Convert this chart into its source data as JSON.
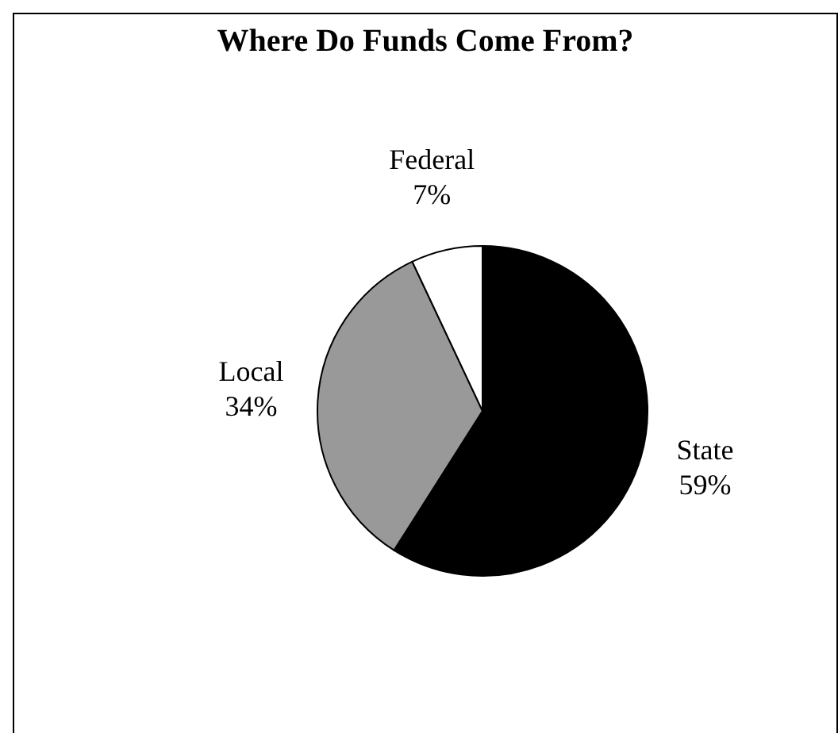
{
  "chart_data": {
    "type": "pie",
    "title": "Where Do Funds Come From?",
    "categories": [
      "State",
      "Local",
      "Federal"
    ],
    "values": [
      59,
      34,
      7
    ],
    "colors": [
      "#000000",
      "#999999",
      "#ffffff"
    ],
    "value_labels": [
      "59%",
      "34%",
      "7%"
    ],
    "legend": false
  }
}
